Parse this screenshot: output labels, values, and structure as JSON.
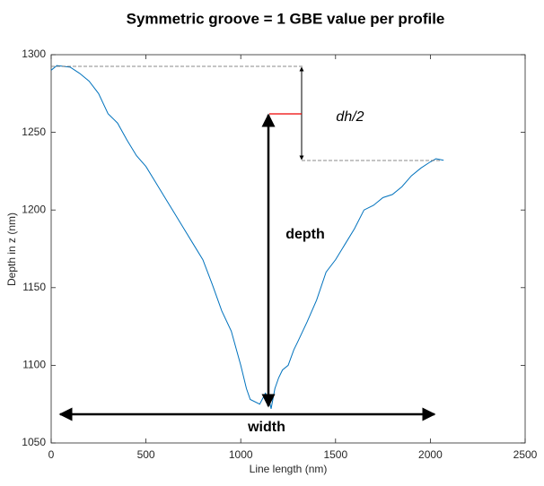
{
  "chart_data": {
    "type": "line",
    "title": "Symmetric groove = 1 GBE value per profile",
    "x_label": "Line length (nm)",
    "y_label": "Depth in z (nm)",
    "annotations": [
      "dh/2",
      "depth",
      "width"
    ],
    "x": [
      0,
      30,
      100,
      150,
      200,
      250,
      300,
      350,
      400,
      450,
      500,
      550,
      600,
      650,
      700,
      750,
      800,
      850,
      900,
      950,
      1000,
      1030,
      1050,
      1100,
      1130,
      1150,
      1160,
      1180,
      1200,
      1220,
      1250,
      1280,
      1300,
      1350,
      1400,
      1450,
      1500,
      1550,
      1600,
      1650,
      1700,
      1750,
      1800,
      1850,
      1900,
      1950,
      2000,
      2030,
      2070
    ],
    "series": [
      {
        "color": "#0072bd",
        "values": [
          1290,
          1293,
          1292,
          1288,
          1283,
          1275,
          1262,
          1256,
          1245,
          1235,
          1228,
          1218,
          1208,
          1198,
          1188,
          1178,
          1168,
          1152,
          1135,
          1122,
          1100,
          1085,
          1078,
          1075,
          1082,
          1078,
          1072,
          1085,
          1092,
          1097,
          1100,
          1110,
          1115,
          1128,
          1142,
          1160,
          1168,
          1178,
          1188,
          1200,
          1203,
          1208,
          1210,
          1215,
          1222,
          1227,
          1231,
          1233,
          1232
        ]
      }
    ],
    "xlim": [
      0,
      2500
    ],
    "xticks": [
      0,
      500,
      1000,
      1500,
      2000,
      2500
    ],
    "ylim": [
      1050,
      1300
    ],
    "yticks": [
      1050,
      1100,
      1150,
      1200,
      1250,
      1300
    ]
  }
}
